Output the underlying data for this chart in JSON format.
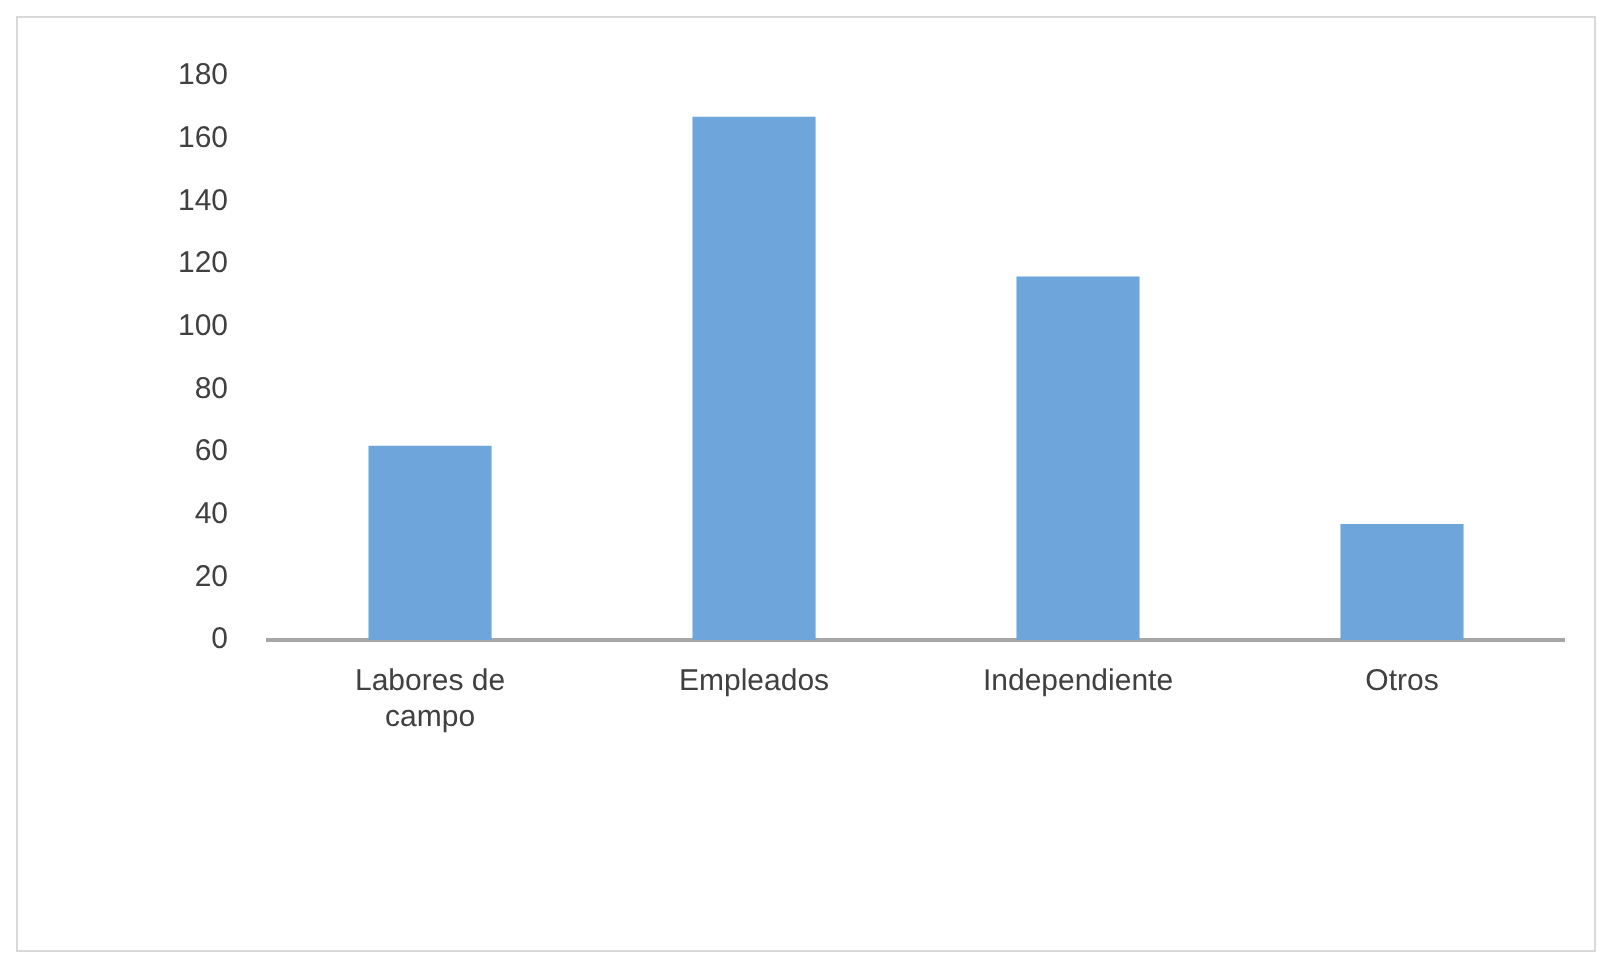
{
  "chart_data": {
    "type": "bar",
    "categories": [
      "Labores de campo",
      "Empleados",
      "Independiente",
      "Otros"
    ],
    "values": [
      62,
      167,
      116,
      37
    ],
    "color": "#6ea6dc",
    "ylim": [
      0,
      180
    ],
    "yticks": [
      0,
      20,
      40,
      60,
      80,
      100,
      120,
      140,
      160,
      180
    ],
    "grid": false,
    "legend": false
  }
}
